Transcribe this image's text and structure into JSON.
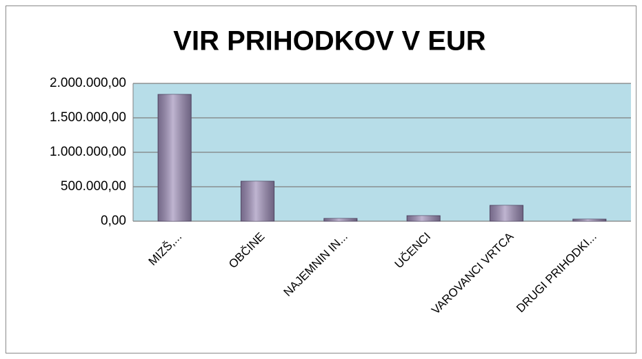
{
  "chart_data": {
    "type": "bar",
    "title": "VIR PRIHODKOV V EUR",
    "categories": [
      "MIZŠ,...",
      "OBČINE",
      "NAJEMNIN IN...",
      "UČENCI",
      "VAROVANCI VRTCA",
      "DRUGI PRIHODKI..."
    ],
    "values": [
      1840000,
      580000,
      40000,
      80000,
      230000,
      30000
    ],
    "color": "#9d8db8",
    "plot_background": "#b7dde8",
    "ylim": [
      0,
      2000000
    ],
    "yticks": [
      {
        "value": 0,
        "label": "0,00"
      },
      {
        "value": 500000,
        "label": "500.000,00"
      },
      {
        "value": 1000000,
        "label": "1.000.000,00"
      },
      {
        "value": 1500000,
        "label": "1.500.000,00"
      },
      {
        "value": 2000000,
        "label": "2.000.000,00"
      }
    ],
    "grid": true
  }
}
